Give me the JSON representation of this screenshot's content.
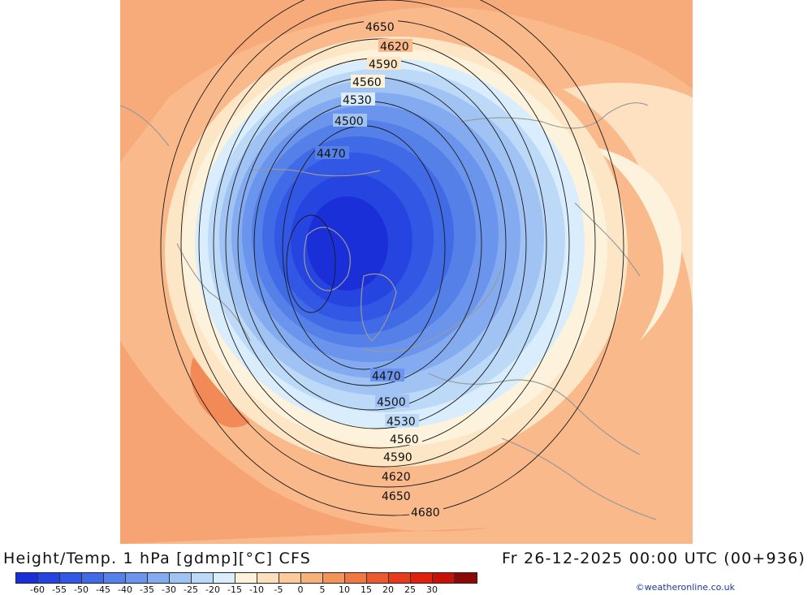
{
  "title_left": "Height/Temp. 1 hPa [gdmp][°C] CFS",
  "title_right": "Fr 26-12-2025 00:00 UTC (00+936)",
  "credit": "©weatheronline.co.uk",
  "colorbar": {
    "labels": [
      "-60",
      "-55",
      "-50",
      "-45",
      "-40",
      "-35",
      "-30",
      "-25",
      "-20",
      "-15",
      "-10",
      "-5",
      "0",
      "5",
      "10",
      "15",
      "20",
      "25",
      "30"
    ],
    "colors": [
      "#1a2fd8",
      "#2544e0",
      "#3157e4",
      "#416ae6",
      "#5480e8",
      "#6b95ec",
      "#84abf0",
      "#a0c3f4",
      "#bcdaf8",
      "#d9edfc",
      "#fdf3dc",
      "#fde0bb",
      "#fccb9b",
      "#f8b07a",
      "#f3935c",
      "#ee7744",
      "#ea5a2f",
      "#e63c1c",
      "#e2200e",
      "#c81208",
      "#8a0a08"
    ]
  },
  "map": {
    "contours": [
      {
        "label": "4470",
        "labels": [
          "4470",
          "4470"
        ]
      },
      {
        "label": "4500",
        "labels": [
          "4500",
          "4500"
        ]
      },
      {
        "label": "4530",
        "labels": [
          "4530",
          "4530"
        ]
      },
      {
        "label": "4560",
        "labels": [
          "4560",
          "4560"
        ]
      },
      {
        "label": "4590",
        "labels": [
          "4590",
          "4590"
        ]
      },
      {
        "label": "4620",
        "labels": [
          "4620",
          "4620"
        ]
      },
      {
        "label": "4650",
        "labels": [
          "4650",
          "4650"
        ]
      },
      {
        "label": "4680",
        "labels": [
          "4680"
        ]
      }
    ]
  }
}
